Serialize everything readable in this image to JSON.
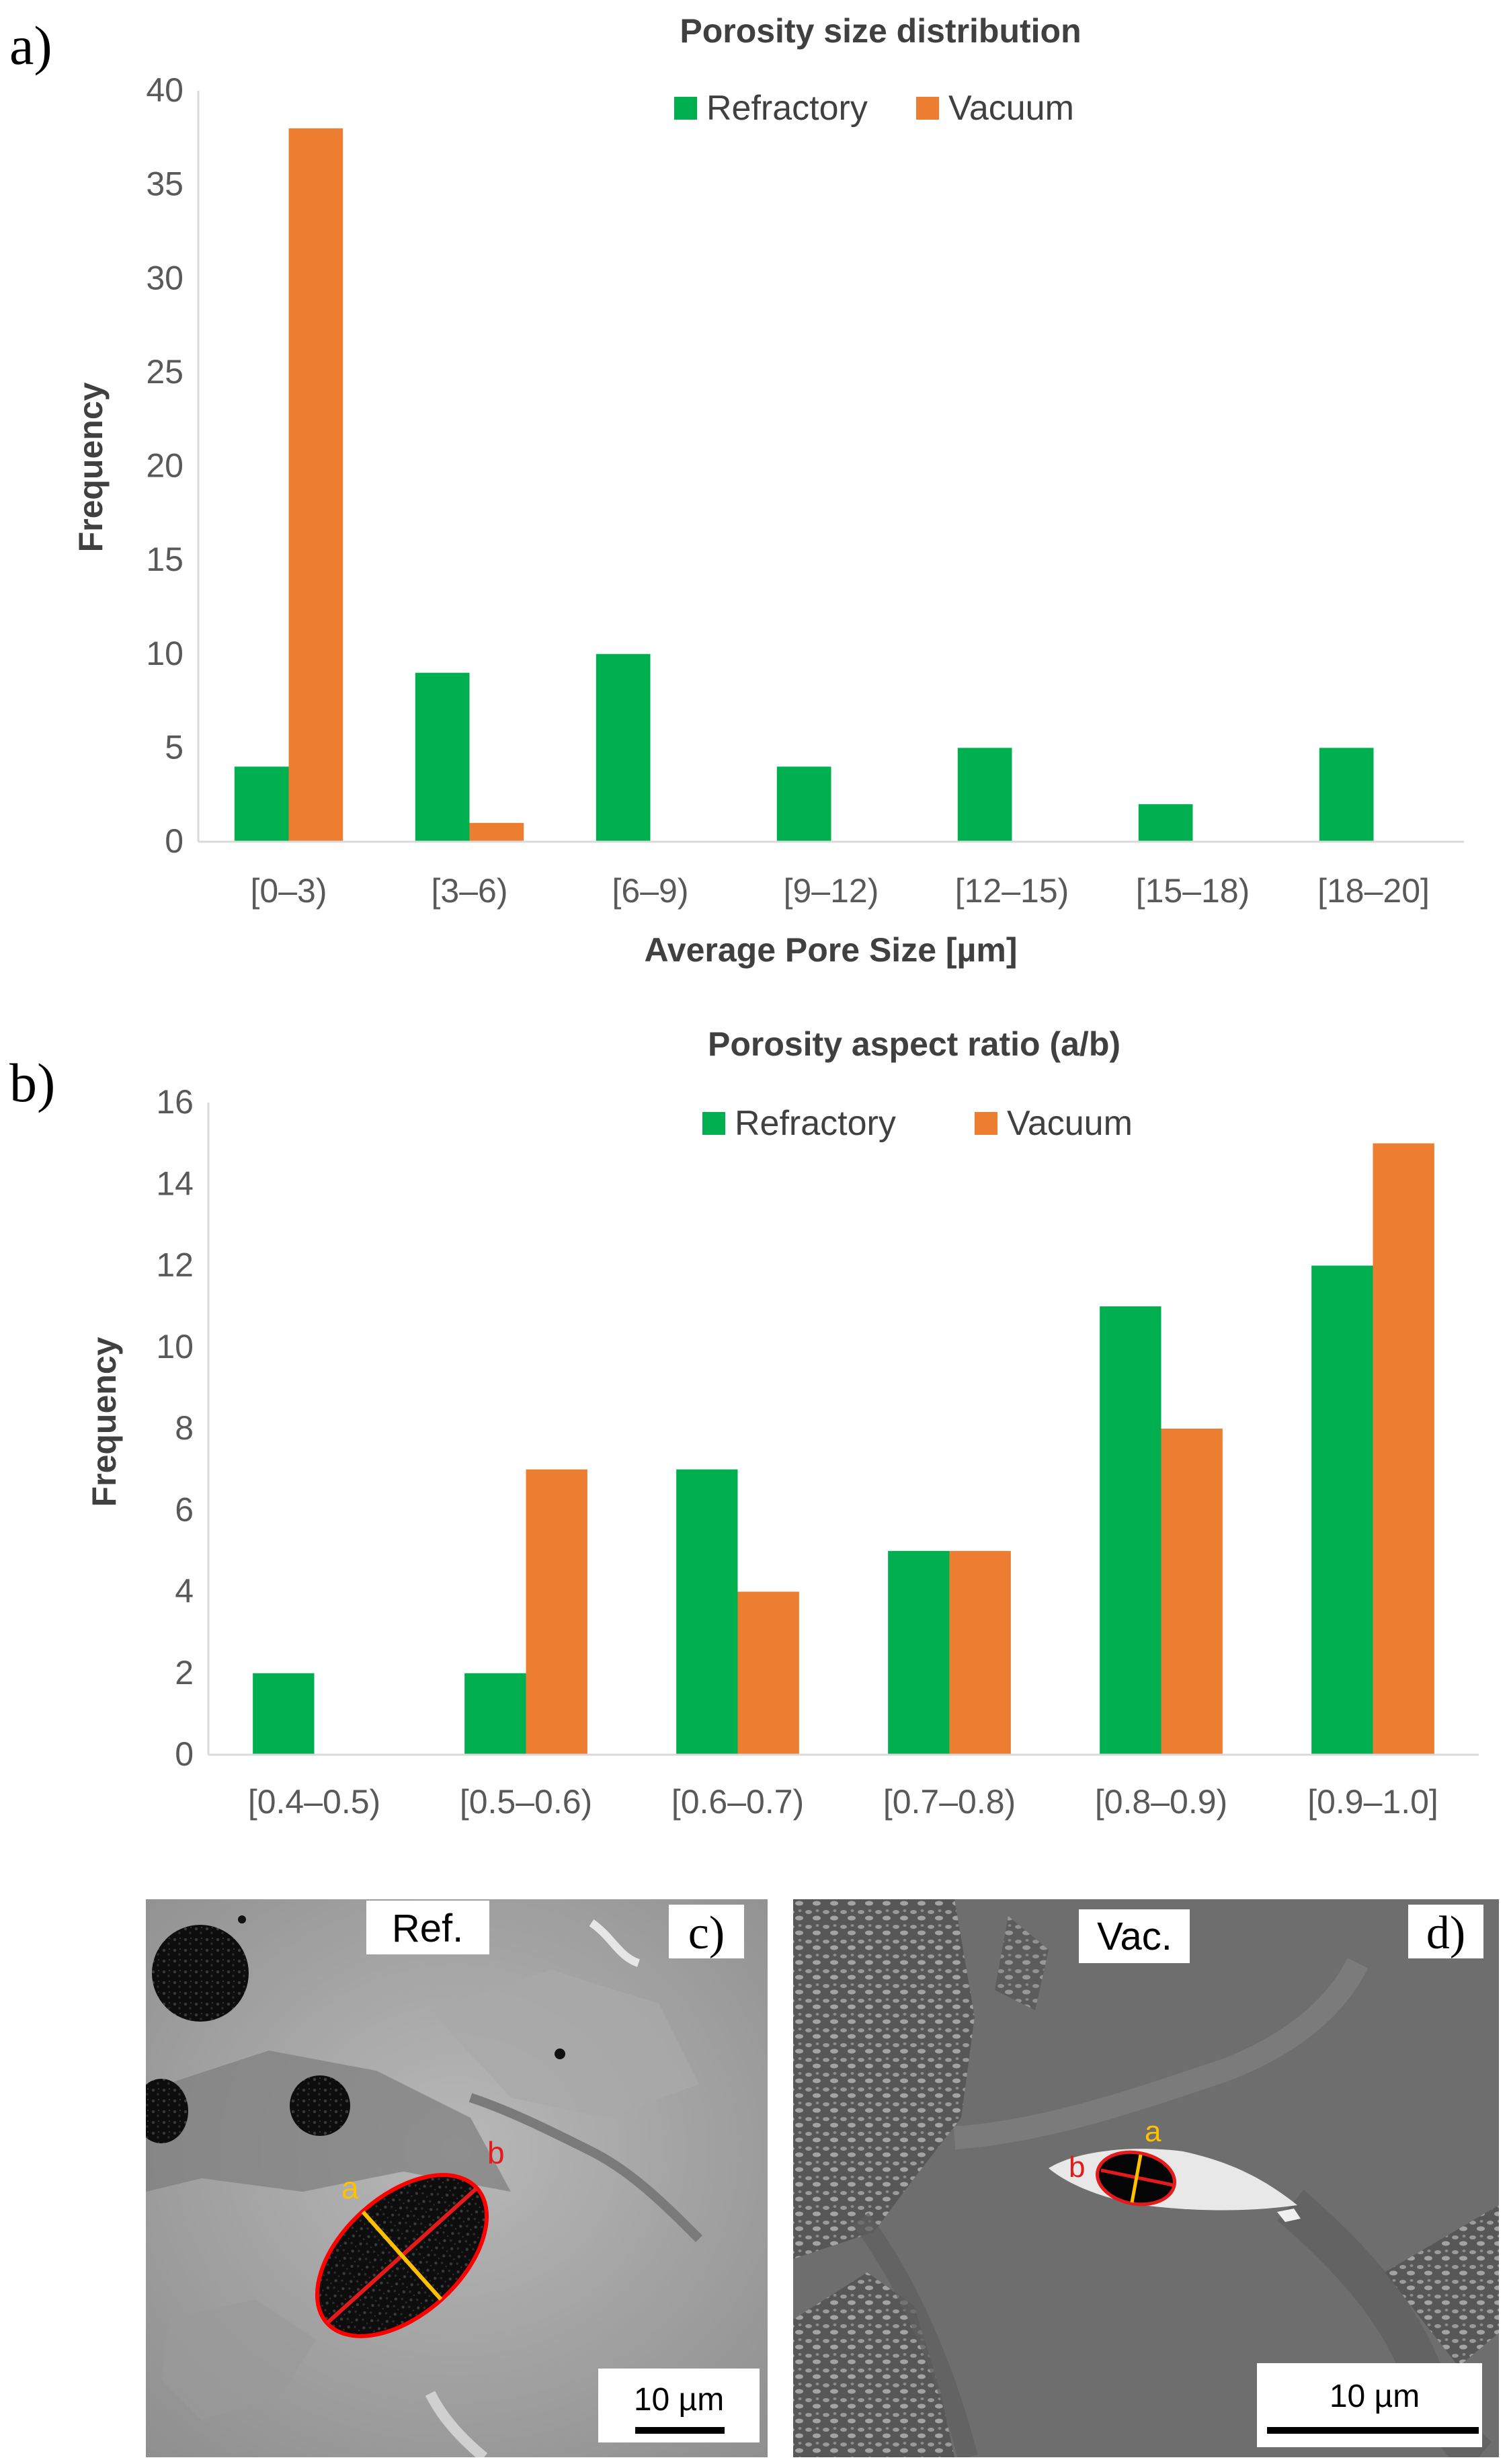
{
  "panels": {
    "a": {
      "label": "a)"
    },
    "b": {
      "label": "b)"
    },
    "c": {
      "label": "c)",
      "tag": "Ref.",
      "scale_bar": "10 µm",
      "ellipse_labels": {
        "major": "b",
        "minor": "a"
      }
    },
    "d": {
      "label": "d)",
      "tag": "Vac.",
      "scale_bar": "10 µm",
      "ellipse_labels": {
        "major": "b",
        "minor": "a"
      }
    }
  },
  "chart_data": [
    {
      "type": "bar",
      "title": "Porosity size distribution",
      "xlabel": "Average Pore Size [µm]",
      "ylabel": "Frequency",
      "ylim": [
        0,
        40
      ],
      "yticks": [
        0,
        5,
        10,
        15,
        20,
        25,
        30,
        35,
        40
      ],
      "grid": false,
      "legend_position": "top-center",
      "categories": [
        "[0–3)",
        "[3–6)",
        "[6–9)",
        "[9–12)",
        "[12–15)",
        "[15–18)",
        "[18–20]"
      ],
      "series": [
        {
          "name": "Refractory",
          "color": "#00B050",
          "values": [
            4,
            9,
            10,
            4,
            5,
            2,
            5
          ]
        },
        {
          "name": "Vacuum",
          "color": "#ED7D31",
          "values": [
            38,
            1,
            0,
            0,
            0,
            0,
            0
          ]
        }
      ]
    },
    {
      "type": "bar",
      "title": "Porosity aspect ratio (a/b)",
      "xlabel": "",
      "ylabel": "Frequency",
      "ylim": [
        0,
        16
      ],
      "yticks": [
        0,
        2,
        4,
        6,
        8,
        10,
        12,
        14,
        16
      ],
      "grid": false,
      "legend_position": "top-right",
      "categories": [
        "[0.4–0.5)",
        "[0.5–0.6)",
        "[0.6–0.7)",
        "[0.7–0.8)",
        "[0.8–0.9)",
        "[0.9–1.0]"
      ],
      "series": [
        {
          "name": "Refractory",
          "color": "#00B050",
          "values": [
            2,
            2,
            7,
            5,
            11,
            12
          ]
        },
        {
          "name": "Vacuum",
          "color": "#ED7D31",
          "values": [
            0,
            7,
            4,
            5,
            8,
            15
          ]
        }
      ]
    }
  ]
}
